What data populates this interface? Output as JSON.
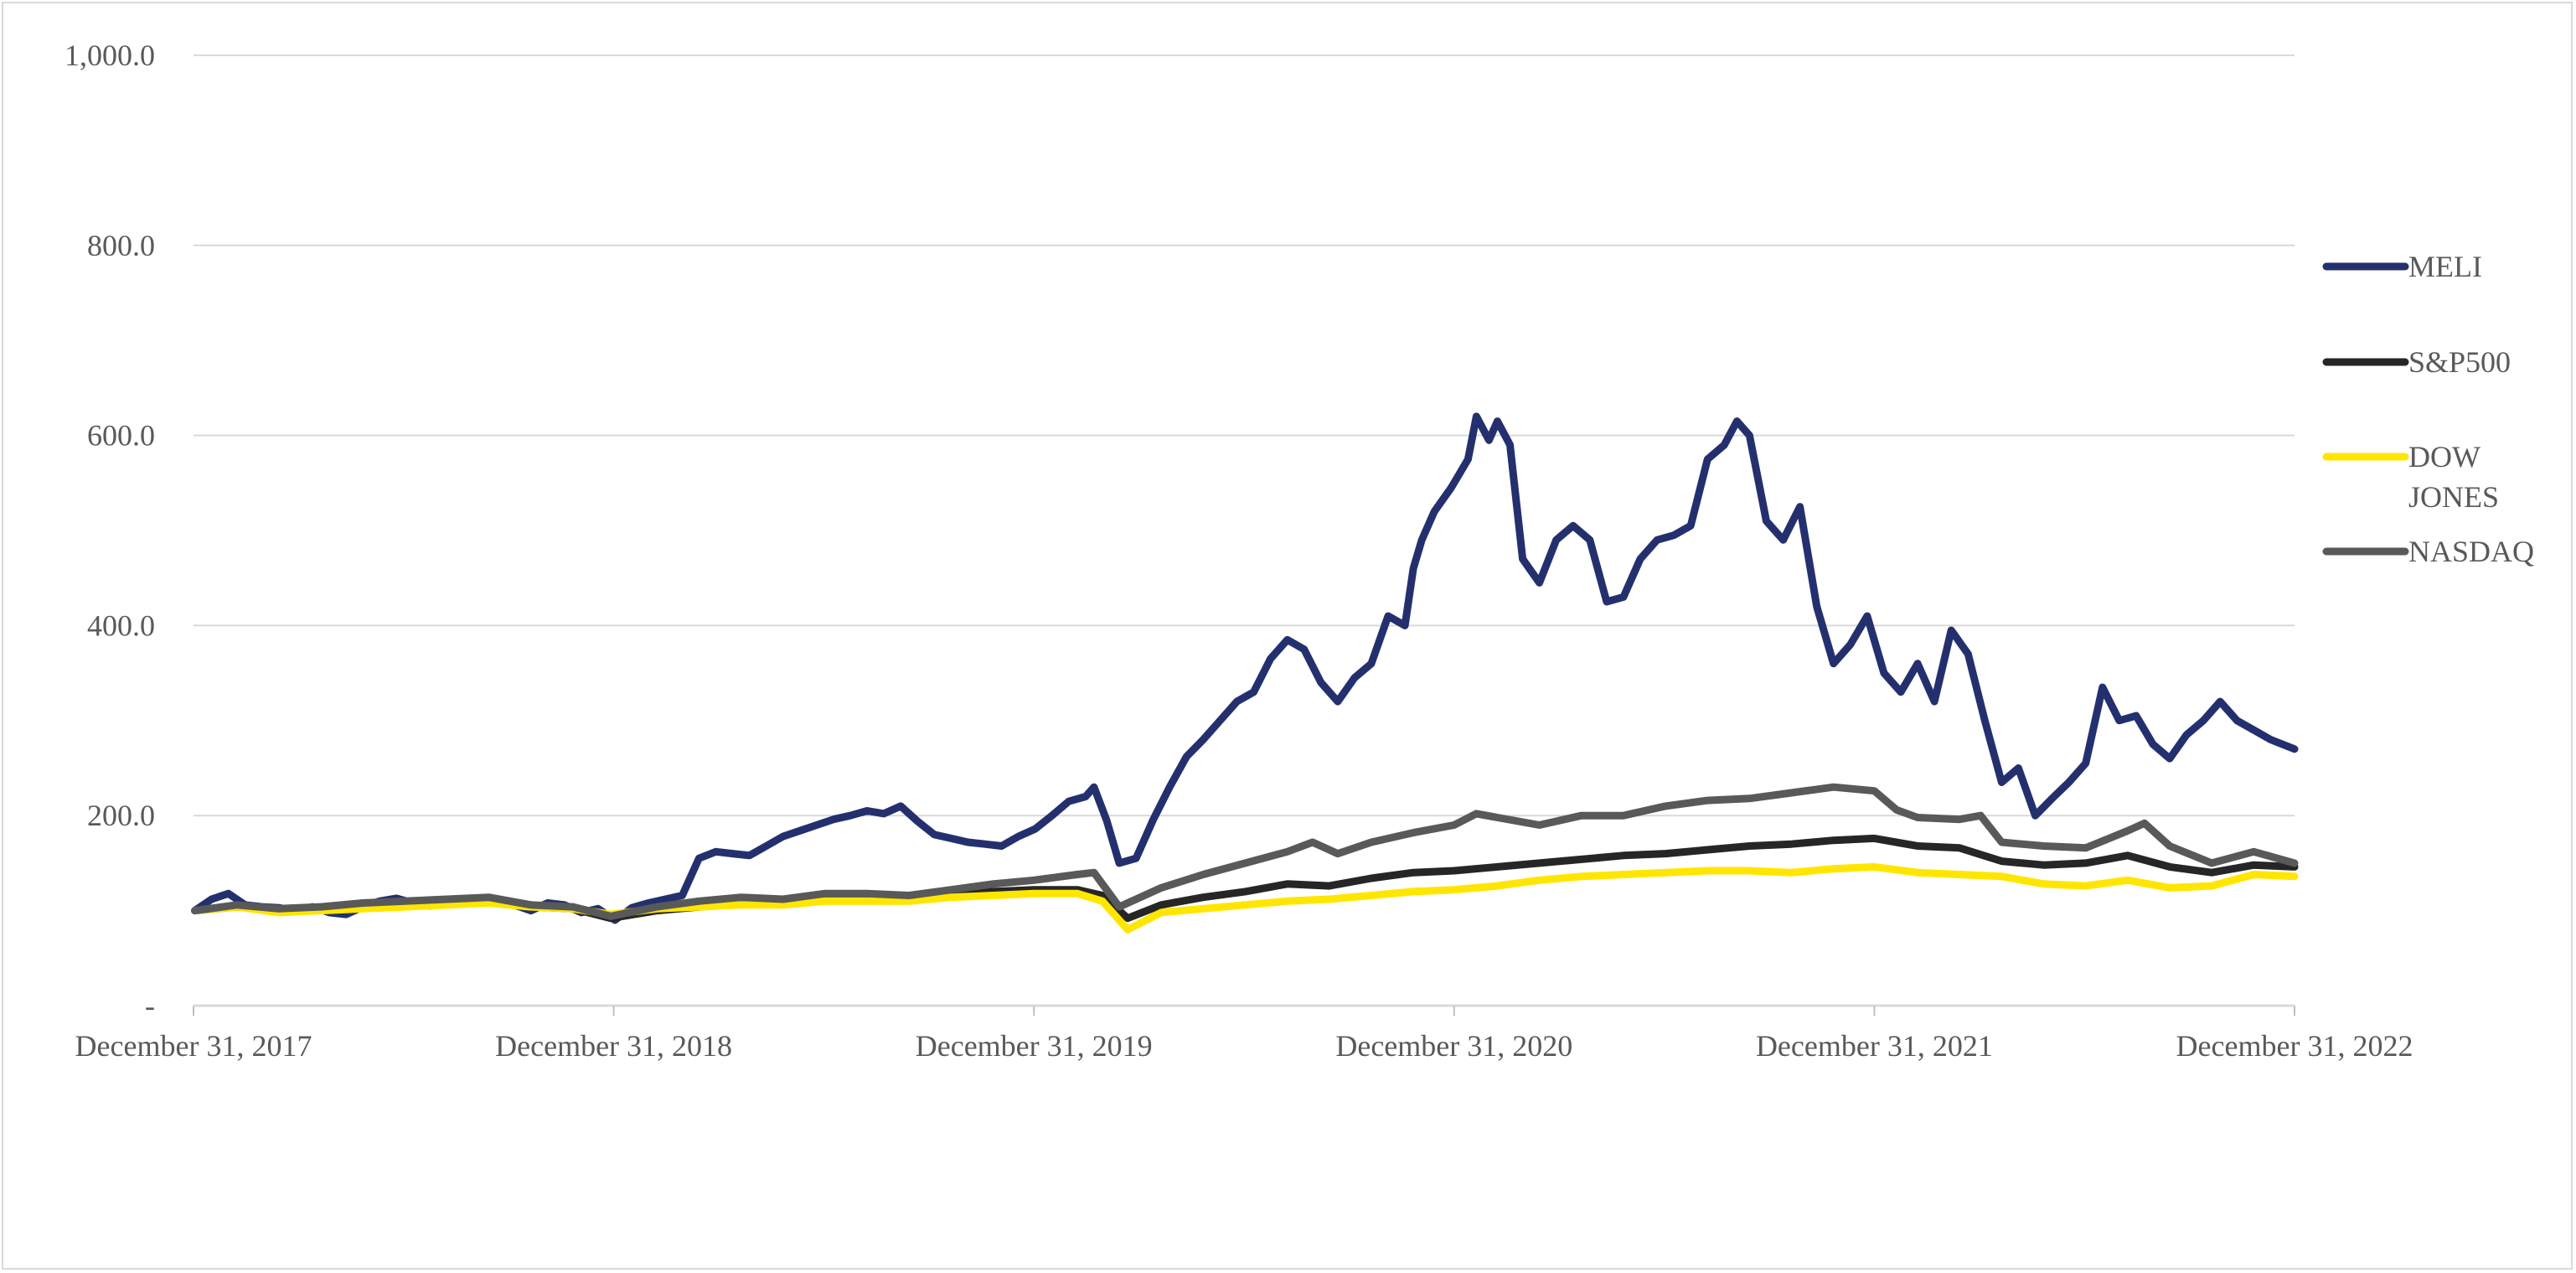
{
  "chart_data": {
    "type": "line",
    "title": "",
    "xlabel": "",
    "ylabel": "",
    "ylim": [
      0,
      1000
    ],
    "y_ticks": [
      {
        "value": 0,
        "label": "-"
      },
      {
        "value": 200,
        "label": "200.0"
      },
      {
        "value": 400,
        "label": "400.0"
      },
      {
        "value": 600,
        "label": "600.0"
      },
      {
        "value": 800,
        "label": "800.0"
      },
      {
        "value": 1000,
        "label": "1,000.0"
      }
    ],
    "x_range": [
      2017.997,
      2022.997
    ],
    "x_ticks": [
      {
        "value": 2017.997,
        "label": "December 31, 2017"
      },
      {
        "value": 2018.997,
        "label": "December 31, 2018"
      },
      {
        "value": 2019.997,
        "label": "December 31, 2019"
      },
      {
        "value": 2020.997,
        "label": "December 31, 2020"
      },
      {
        "value": 2021.997,
        "label": "December 31, 2021"
      },
      {
        "value": 2022.997,
        "label": "December 31, 2022"
      }
    ],
    "legend_position": "right",
    "gridlines": true,
    "series": [
      {
        "name": "MELI",
        "color": "#24306e",
        "points": [
          [
            2018.0,
            100
          ],
          [
            2018.04,
            112
          ],
          [
            2018.08,
            118
          ],
          [
            2018.12,
            106
          ],
          [
            2018.16,
            104
          ],
          [
            2018.2,
            103
          ],
          [
            2018.24,
            100
          ],
          [
            2018.28,
            104
          ],
          [
            2018.32,
            98
          ],
          [
            2018.36,
            96
          ],
          [
            2018.4,
            104
          ],
          [
            2018.44,
            110
          ],
          [
            2018.48,
            113
          ],
          [
            2018.52,
            108
          ],
          [
            2018.56,
            105
          ],
          [
            2018.6,
            110
          ],
          [
            2018.64,
            108
          ],
          [
            2018.68,
            113
          ],
          [
            2018.72,
            112
          ],
          [
            2018.76,
            106
          ],
          [
            2018.8,
            100
          ],
          [
            2018.84,
            108
          ],
          [
            2018.88,
            106
          ],
          [
            2018.92,
            98
          ],
          [
            2018.96,
            102
          ],
          [
            2019.0,
            90
          ],
          [
            2019.04,
            103
          ],
          [
            2019.08,
            108
          ],
          [
            2019.12,
            112
          ],
          [
            2019.16,
            116
          ],
          [
            2019.2,
            155
          ],
          [
            2019.24,
            162
          ],
          [
            2019.28,
            160
          ],
          [
            2019.32,
            158
          ],
          [
            2019.36,
            168
          ],
          [
            2019.4,
            178
          ],
          [
            2019.44,
            184
          ],
          [
            2019.48,
            190
          ],
          [
            2019.52,
            196
          ],
          [
            2019.56,
            200
          ],
          [
            2019.6,
            205
          ],
          [
            2019.64,
            202
          ],
          [
            2019.68,
            210
          ],
          [
            2019.72,
            194
          ],
          [
            2019.76,
            180
          ],
          [
            2019.8,
            176
          ],
          [
            2019.84,
            172
          ],
          [
            2019.88,
            170
          ],
          [
            2019.92,
            168
          ],
          [
            2019.96,
            178
          ],
          [
            2020.0,
            186
          ],
          [
            2020.04,
            200
          ],
          [
            2020.08,
            215
          ],
          [
            2020.12,
            220
          ],
          [
            2020.14,
            230
          ],
          [
            2020.17,
            195
          ],
          [
            2020.2,
            150
          ],
          [
            2020.24,
            155
          ],
          [
            2020.28,
            195
          ],
          [
            2020.32,
            230
          ],
          [
            2020.36,
            262
          ],
          [
            2020.4,
            280
          ],
          [
            2020.44,
            300
          ],
          [
            2020.48,
            320
          ],
          [
            2020.52,
            330
          ],
          [
            2020.56,
            365
          ],
          [
            2020.6,
            385
          ],
          [
            2020.64,
            375
          ],
          [
            2020.68,
            340
          ],
          [
            2020.72,
            320
          ],
          [
            2020.76,
            345
          ],
          [
            2020.8,
            360
          ],
          [
            2020.84,
            410
          ],
          [
            2020.88,
            400
          ],
          [
            2020.9,
            460
          ],
          [
            2020.92,
            490
          ],
          [
            2020.95,
            520
          ],
          [
            2020.99,
            545
          ],
          [
            2021.03,
            575
          ],
          [
            2021.05,
            620
          ],
          [
            2021.08,
            595
          ],
          [
            2021.1,
            615
          ],
          [
            2021.13,
            590
          ],
          [
            2021.16,
            470
          ],
          [
            2021.2,
            445
          ],
          [
            2021.24,
            490
          ],
          [
            2021.28,
            505
          ],
          [
            2021.32,
            490
          ],
          [
            2021.36,
            425
          ],
          [
            2021.4,
            430
          ],
          [
            2021.44,
            470
          ],
          [
            2021.48,
            490
          ],
          [
            2021.52,
            495
          ],
          [
            2021.56,
            505
          ],
          [
            2021.6,
            575
          ],
          [
            2021.64,
            590
          ],
          [
            2021.67,
            615
          ],
          [
            2021.7,
            600
          ],
          [
            2021.74,
            510
          ],
          [
            2021.78,
            490
          ],
          [
            2021.82,
            525
          ],
          [
            2021.86,
            420
          ],
          [
            2021.9,
            360
          ],
          [
            2021.94,
            380
          ],
          [
            2021.98,
            410
          ],
          [
            2022.02,
            350
          ],
          [
            2022.06,
            330
          ],
          [
            2022.1,
            360
          ],
          [
            2022.14,
            320
          ],
          [
            2022.18,
            395
          ],
          [
            2022.22,
            370
          ],
          [
            2022.26,
            300
          ],
          [
            2022.3,
            235
          ],
          [
            2022.34,
            250
          ],
          [
            2022.38,
            200
          ],
          [
            2022.42,
            218
          ],
          [
            2022.46,
            235
          ],
          [
            2022.5,
            255
          ],
          [
            2022.54,
            335
          ],
          [
            2022.58,
            300
          ],
          [
            2022.62,
            305
          ],
          [
            2022.66,
            275
          ],
          [
            2022.7,
            260
          ],
          [
            2022.74,
            285
          ],
          [
            2022.78,
            300
          ],
          [
            2022.82,
            320
          ],
          [
            2022.86,
            300
          ],
          [
            2022.9,
            290
          ],
          [
            2022.94,
            280
          ],
          [
            2022.997,
            270
          ]
        ]
      },
      {
        "name": "S&P500",
        "color": "#262626",
        "points": [
          [
            2018.0,
            100
          ],
          [
            2018.1,
            104
          ],
          [
            2018.2,
            100
          ],
          [
            2018.3,
            102
          ],
          [
            2018.4,
            104
          ],
          [
            2018.5,
            106
          ],
          [
            2018.6,
            108
          ],
          [
            2018.7,
            110
          ],
          [
            2018.8,
            104
          ],
          [
            2018.9,
            102
          ],
          [
            2018.99,
            92
          ],
          [
            2019.1,
            100
          ],
          [
            2019.2,
            104
          ],
          [
            2019.3,
            108
          ],
          [
            2019.4,
            108
          ],
          [
            2019.5,
            112
          ],
          [
            2019.6,
            114
          ],
          [
            2019.7,
            114
          ],
          [
            2019.8,
            118
          ],
          [
            2019.9,
            120
          ],
          [
            2019.997,
            122
          ],
          [
            2020.1,
            122
          ],
          [
            2020.16,
            116
          ],
          [
            2020.22,
            92
          ],
          [
            2020.3,
            106
          ],
          [
            2020.4,
            114
          ],
          [
            2020.5,
            120
          ],
          [
            2020.6,
            128
          ],
          [
            2020.7,
            126
          ],
          [
            2020.8,
            134
          ],
          [
            2020.9,
            140
          ],
          [
            2020.997,
            142
          ],
          [
            2021.1,
            146
          ],
          [
            2021.2,
            150
          ],
          [
            2021.3,
            154
          ],
          [
            2021.4,
            158
          ],
          [
            2021.5,
            160
          ],
          [
            2021.6,
            164
          ],
          [
            2021.7,
            168
          ],
          [
            2021.8,
            170
          ],
          [
            2021.9,
            174
          ],
          [
            2021.997,
            176
          ],
          [
            2022.1,
            168
          ],
          [
            2022.2,
            166
          ],
          [
            2022.3,
            152
          ],
          [
            2022.4,
            148
          ],
          [
            2022.5,
            150
          ],
          [
            2022.6,
            158
          ],
          [
            2022.7,
            146
          ],
          [
            2022.8,
            140
          ],
          [
            2022.9,
            148
          ],
          [
            2022.997,
            146
          ]
        ]
      },
      {
        "name": "DOW JONES",
        "color": "#ffe600",
        "points": [
          [
            2018.0,
            100
          ],
          [
            2018.1,
            104
          ],
          [
            2018.2,
            98
          ],
          [
            2018.3,
            100
          ],
          [
            2018.4,
            102
          ],
          [
            2018.5,
            104
          ],
          [
            2018.6,
            106
          ],
          [
            2018.7,
            108
          ],
          [
            2018.8,
            104
          ],
          [
            2018.9,
            102
          ],
          [
            2018.99,
            96
          ],
          [
            2019.1,
            102
          ],
          [
            2019.2,
            104
          ],
          [
            2019.3,
            106
          ],
          [
            2019.4,
            106
          ],
          [
            2019.5,
            110
          ],
          [
            2019.6,
            110
          ],
          [
            2019.7,
            110
          ],
          [
            2019.8,
            114
          ],
          [
            2019.9,
            116
          ],
          [
            2019.997,
            118
          ],
          [
            2020.1,
            118
          ],
          [
            2020.16,
            110
          ],
          [
            2020.22,
            80
          ],
          [
            2020.3,
            98
          ],
          [
            2020.4,
            102
          ],
          [
            2020.5,
            106
          ],
          [
            2020.6,
            110
          ],
          [
            2020.7,
            112
          ],
          [
            2020.8,
            116
          ],
          [
            2020.9,
            120
          ],
          [
            2020.997,
            122
          ],
          [
            2021.1,
            126
          ],
          [
            2021.2,
            132
          ],
          [
            2021.3,
            136
          ],
          [
            2021.4,
            138
          ],
          [
            2021.5,
            140
          ],
          [
            2021.6,
            142
          ],
          [
            2021.7,
            142
          ],
          [
            2021.8,
            140
          ],
          [
            2021.9,
            144
          ],
          [
            2021.997,
            146
          ],
          [
            2022.1,
            140
          ],
          [
            2022.2,
            138
          ],
          [
            2022.3,
            136
          ],
          [
            2022.4,
            128
          ],
          [
            2022.5,
            126
          ],
          [
            2022.6,
            132
          ],
          [
            2022.7,
            124
          ],
          [
            2022.8,
            126
          ],
          [
            2022.9,
            138
          ],
          [
            2022.997,
            136
          ]
        ]
      },
      {
        "name": "NASDAQ",
        "color": "#595959",
        "points": [
          [
            2018.0,
            100
          ],
          [
            2018.1,
            106
          ],
          [
            2018.2,
            102
          ],
          [
            2018.3,
            104
          ],
          [
            2018.4,
            108
          ],
          [
            2018.5,
            110
          ],
          [
            2018.6,
            112
          ],
          [
            2018.7,
            114
          ],
          [
            2018.8,
            106
          ],
          [
            2018.9,
            104
          ],
          [
            2018.99,
            94
          ],
          [
            2019.1,
            104
          ],
          [
            2019.2,
            110
          ],
          [
            2019.3,
            114
          ],
          [
            2019.4,
            112
          ],
          [
            2019.5,
            118
          ],
          [
            2019.6,
            118
          ],
          [
            2019.7,
            116
          ],
          [
            2019.8,
            122
          ],
          [
            2019.9,
            128
          ],
          [
            2019.997,
            132
          ],
          [
            2020.1,
            138
          ],
          [
            2020.14,
            140
          ],
          [
            2020.2,
            104
          ],
          [
            2020.3,
            124
          ],
          [
            2020.4,
            138
          ],
          [
            2020.5,
            150
          ],
          [
            2020.6,
            162
          ],
          [
            2020.66,
            172
          ],
          [
            2020.72,
            160
          ],
          [
            2020.8,
            172
          ],
          [
            2020.9,
            182
          ],
          [
            2020.997,
            190
          ],
          [
            2021.05,
            202
          ],
          [
            2021.1,
            198
          ],
          [
            2021.2,
            190
          ],
          [
            2021.3,
            200
          ],
          [
            2021.4,
            200
          ],
          [
            2021.5,
            210
          ],
          [
            2021.6,
            216
          ],
          [
            2021.7,
            218
          ],
          [
            2021.8,
            224
          ],
          [
            2021.9,
            230
          ],
          [
            2021.997,
            226
          ],
          [
            2022.05,
            206
          ],
          [
            2022.1,
            198
          ],
          [
            2022.2,
            196
          ],
          [
            2022.25,
            200
          ],
          [
            2022.3,
            172
          ],
          [
            2022.4,
            168
          ],
          [
            2022.5,
            166
          ],
          [
            2022.6,
            184
          ],
          [
            2022.64,
            192
          ],
          [
            2022.7,
            168
          ],
          [
            2022.8,
            150
          ],
          [
            2022.9,
            162
          ],
          [
            2022.997,
            150
          ]
        ]
      }
    ]
  }
}
